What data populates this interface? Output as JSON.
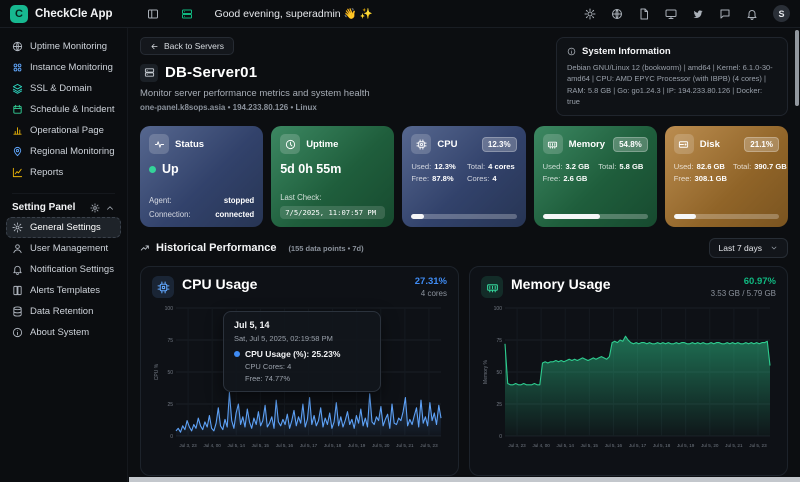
{
  "app": {
    "name": "CheckCle App",
    "logo_letter": "C"
  },
  "topbar": {
    "greeting": "Good evening, superadmin 👋 ✨",
    "avatar_letter": "S"
  },
  "sidebar": {
    "items": [
      {
        "label": "Uptime Monitoring",
        "icon": "globe",
        "color": "#aeb4bd"
      },
      {
        "label": "Instance Monitoring",
        "icon": "nodes",
        "color": "#60a5fa"
      },
      {
        "label": "SSL & Domain",
        "icon": "layers",
        "color": "#2dd4bf"
      },
      {
        "label": "Schedule & Incident",
        "icon": "calendar",
        "color": "#34d399"
      },
      {
        "label": "Operational Page",
        "icon": "bars",
        "color": "#eab308"
      },
      {
        "label": "Regional Monitoring",
        "icon": "pin",
        "color": "#60a5fa"
      },
      {
        "label": "Reports",
        "icon": "chart",
        "color": "#eab308"
      }
    ],
    "settings_label": "Setting Panel",
    "settings_items": [
      {
        "label": "General Settings",
        "icon": "gear",
        "active": true
      },
      {
        "label": "User Management",
        "icon": "user"
      },
      {
        "label": "Notification Settings",
        "icon": "bell"
      },
      {
        "label": "Alerts Templates",
        "icon": "book"
      },
      {
        "label": "Data Retention",
        "icon": "db"
      },
      {
        "label": "About System",
        "icon": "info"
      }
    ]
  },
  "page": {
    "back_label": "Back to Servers",
    "server_name": "DB-Server01",
    "subtitle": "Monitor server performance metrics and system health",
    "meta": "one-panel.k8sops.asia • 194.233.80.126 • Linux"
  },
  "system_info": {
    "title": "System Information",
    "details": "Debian GNU/Linux 12 (bookworm) | amd64 | Kernel: 6.1.0-30-amd64 | CPU: AMD EPYC Processor (with IBPB) (4 cores) | RAM: 5.8 GB | Go: go1.24.3 | IP: 194.233.80.126 | Docker: true"
  },
  "cards": {
    "status": {
      "label": "Status",
      "value": "Up",
      "status_color": "#34d399",
      "agent_label": "Agent:",
      "agent_value": "stopped",
      "connection_label": "Connection:",
      "connection_value": "connected"
    },
    "uptime": {
      "label": "Uptime",
      "value": "5d 0h 55m",
      "last_check_label": "Last Check:",
      "last_check": "7/5/2025, 11:07:57 PM"
    },
    "cpu": {
      "label": "CPU",
      "badge": "12.3%",
      "progress": 12.3,
      "used_label": "Used:",
      "used": "12.3%",
      "total_label": "Total:",
      "total": "4 cores",
      "free_label": "Free:",
      "free": "87.8%",
      "cores_label": "Cores:",
      "cores": "4"
    },
    "memory": {
      "label": "Memory",
      "badge": "54.8%",
      "progress": 54.8,
      "used_label": "Used:",
      "used": "3.2 GB",
      "total_label": "Total:",
      "total": "5.8 GB",
      "free_label": "Free:",
      "free": "2.6 GB"
    },
    "disk": {
      "label": "Disk",
      "badge": "21.1%",
      "progress": 21.1,
      "used_label": "Used:",
      "used": "82.6 GB",
      "total_label": "Total:",
      "total": "390.7 GB",
      "free_label": "Free:",
      "free": "308.1 GB"
    }
  },
  "history": {
    "title": "Historical Performance",
    "subtitle": "(155 data points • 7d)",
    "range": "Last 7 days"
  },
  "chart_data": [
    {
      "type": "line",
      "title": "CPU Usage",
      "current_value": "27.31%",
      "current_sub": "4 cores",
      "ylabel": "CPU %",
      "ylim": [
        0,
        100
      ],
      "yticks": [
        0,
        25,
        50,
        75,
        100
      ],
      "x_tick_labels": [
        "Jul 3, 23",
        "Jul 4, 00",
        "Jul 5, 14",
        "Jul 5, 15",
        "Jul 5, 16",
        "Jul 5, 17",
        "Jul 5, 18",
        "Jul 5, 19",
        "Jul 5, 20",
        "Jul 5, 21",
        "Jul 5, 23"
      ],
      "color": "#5ea2f7",
      "grid": true,
      "legend_position": "none",
      "values": [
        4,
        6,
        3,
        8,
        5,
        12,
        7,
        4,
        9,
        6,
        14,
        8,
        5,
        11,
        7,
        16,
        6,
        4,
        10,
        22,
        8,
        5,
        13,
        7,
        34,
        12,
        6,
        18,
        25,
        9,
        15,
        7,
        21,
        11,
        6,
        14,
        9,
        19,
        8,
        12,
        24,
        7,
        10,
        15,
        6,
        28,
        11,
        8,
        13,
        9,
        17,
        6,
        12,
        20,
        8,
        15,
        10,
        25,
        7,
        13,
        30,
        9,
        16,
        8,
        12,
        22,
        7,
        14,
        9,
        18,
        6,
        11,
        26,
        8,
        15,
        7,
        12,
        19,
        9,
        13,
        6,
        16,
        10,
        21,
        8,
        14,
        7,
        33,
        11,
        9,
        15,
        12,
        23,
        8,
        13,
        17,
        6,
        25,
        10,
        9,
        14,
        12,
        19,
        30,
        8,
        13,
        9,
        16,
        22,
        7,
        28,
        10,
        15,
        8,
        26,
        12,
        18,
        9,
        24,
        14
      ],
      "tooltip": {
        "title": "Jul 5, 14",
        "datetime": "Sat, Jul 5, 2025, 02:19:58 PM",
        "main": "CPU Usage (%): 25.23%",
        "line2": "CPU Cores: 4",
        "line3": "Free: 74.77%"
      }
    },
    {
      "type": "area",
      "title": "Memory Usage",
      "current_value": "60.97%",
      "current_sub": "3.53 GB / 5.79 GB",
      "ylabel": "Memory %",
      "ylim": [
        0,
        100
      ],
      "yticks": [
        0,
        25,
        50,
        75,
        100
      ],
      "x_tick_labels": [
        "Jul 3, 23",
        "Jul 4, 00",
        "Jul 5, 14",
        "Jul 5, 15",
        "Jul 5, 16",
        "Jul 5, 17",
        "Jul 5, 18",
        "Jul 5, 19",
        "Jul 5, 20",
        "Jul 5, 21",
        "Jul 5, 23"
      ],
      "color": "#2ecc8f",
      "grid": true,
      "legend_position": "none",
      "values": [
        72,
        41,
        40,
        40,
        41,
        40,
        40,
        41,
        40,
        40,
        40,
        41,
        40,
        40,
        57,
        58,
        57,
        58,
        58,
        59,
        58,
        59,
        58,
        59,
        60,
        59,
        60,
        59,
        60,
        61,
        60,
        59,
        60,
        61,
        60,
        61,
        62,
        61,
        60,
        62,
        73,
        74,
        73,
        75,
        74,
        78,
        75,
        73,
        72,
        73,
        72,
        73,
        73,
        72,
        73,
        72,
        72,
        73,
        72,
        73,
        72,
        73,
        72,
        72,
        73,
        72,
        73,
        73,
        72,
        72,
        73,
        72,
        73,
        72,
        73,
        72,
        72,
        73,
        72,
        73,
        73,
        72,
        72,
        73,
        72,
        73,
        72,
        73,
        72,
        72,
        73,
        72,
        73,
        72,
        73,
        72,
        73,
        73,
        74,
        55
      ]
    }
  ]
}
